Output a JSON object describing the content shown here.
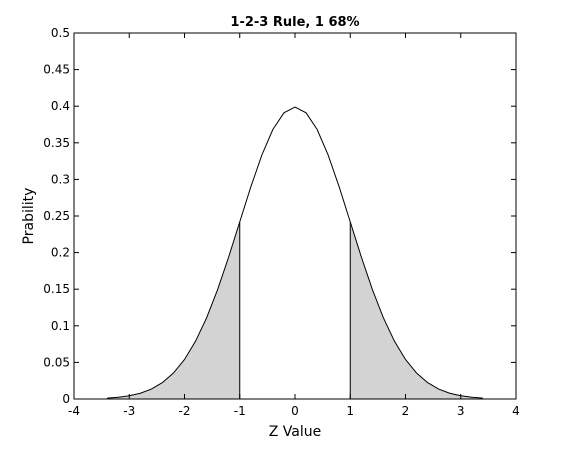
{
  "chart_data": {
    "type": "line",
    "title": "1-2-3 Rule, 1 68%",
    "xlabel": "Z Value",
    "ylabel": "Prability",
    "xlim": [
      -4,
      4
    ],
    "ylim": [
      0,
      0.5
    ],
    "xticks": [
      -4,
      -3,
      -2,
      -1,
      0,
      1,
      2,
      3,
      4
    ],
    "yticks": [
      0,
      0.05,
      0.1,
      0.15,
      0.2,
      0.25,
      0.3,
      0.35,
      0.4,
      0.45,
      0.5
    ],
    "grid": false,
    "series": [
      {
        "x": [
          -3.4,
          -3.2,
          -3.0,
          -2.8,
          -2.6,
          -2.4,
          -2.2,
          -2.0,
          -1.8,
          -1.6,
          -1.4,
          -1.2,
          -1.0,
          -0.8,
          -0.6,
          -0.4,
          -0.2,
          0.0,
          0.2,
          0.4,
          0.6,
          0.8,
          1.0,
          1.2,
          1.4,
          1.6,
          1.8,
          2.0,
          2.2,
          2.4,
          2.6,
          2.8,
          3.0,
          3.2,
          3.4
        ],
        "y": [
          0.0012,
          0.0024,
          0.0044,
          0.0079,
          0.0136,
          0.0224,
          0.0355,
          0.054,
          0.079,
          0.1109,
          0.1497,
          0.1942,
          0.242,
          0.2897,
          0.3332,
          0.3683,
          0.391,
          0.3989,
          0.391,
          0.3683,
          0.3332,
          0.2897,
          0.242,
          0.1942,
          0.1497,
          0.1109,
          0.079,
          0.054,
          0.0355,
          0.0224,
          0.0136,
          0.0079,
          0.0044,
          0.0024,
          0.0012
        ]
      }
    ],
    "shaded_regions": [
      {
        "x_from": -3.4,
        "x_to": -1,
        "fill": "#d3d3d3"
      },
      {
        "x_from": 1,
        "x_to": 3.4,
        "fill": "#d3d3d3"
      }
    ],
    "colors": {
      "curve": "#000000",
      "shade": "#d3d3d3",
      "axes": "#000000"
    }
  }
}
